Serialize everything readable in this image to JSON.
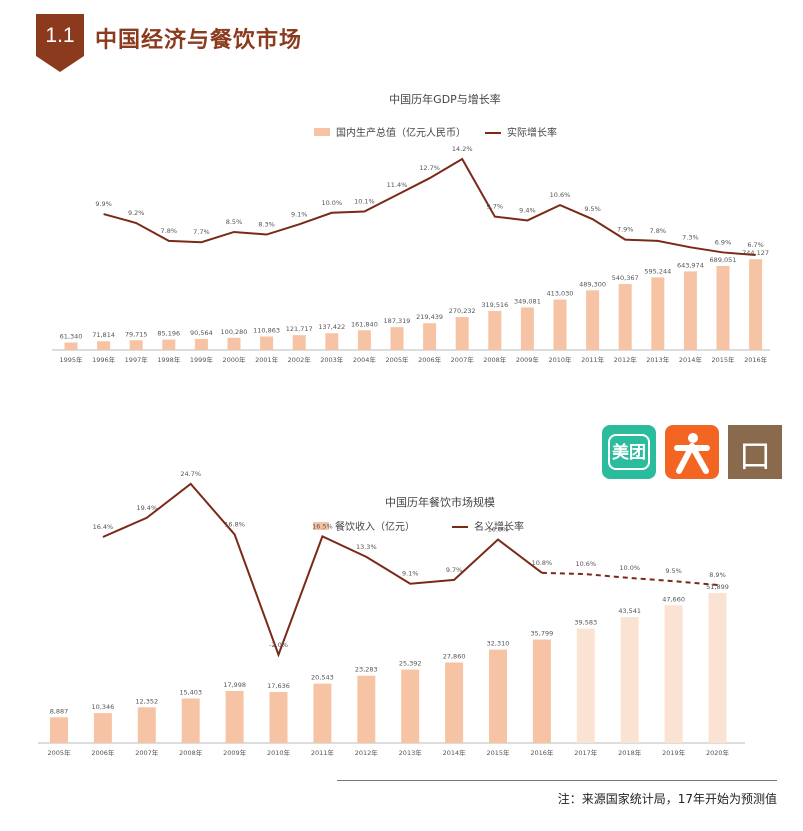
{
  "header": {
    "number": "1.1",
    "title": "中国经济与餐饮市场"
  },
  "logos": {
    "meituan": "美团",
    "koubei": "口碑"
  },
  "note": "注：来源国家统计局，17年开始为预测值",
  "colors": {
    "brand": "#8b3a1e",
    "bar": "#f6c4a4",
    "bar_forecast": "#fbe3d4",
    "line": "#7a2a17",
    "meituan": "#2bbb9d",
    "dianping": "#f26522",
    "koubei": "#8a6a4c"
  },
  "chart_data": [
    {
      "type": "bar",
      "title": "中国历年GDP与增长率",
      "categories": [
        "1995年",
        "1996年",
        "1997年",
        "1998年",
        "1999年",
        "2000年",
        "2001年",
        "2002年",
        "2003年",
        "2004年",
        "2005年",
        "2006年",
        "2007年",
        "2008年",
        "2009年",
        "2010年",
        "2011年",
        "2012年",
        "2013年",
        "2014年",
        "2015年",
        "2016年"
      ],
      "series": [
        {
          "name": "国内生产总值（亿元人民币）",
          "type": "bar",
          "values": [
            61340,
            71814,
            79715,
            85196,
            90564,
            100280,
            110863,
            121717,
            137422,
            161840,
            187319,
            219439,
            270232,
            319516,
            349081,
            413030,
            489300,
            540367,
            595244,
            643974,
            689051,
            744127
          ],
          "labels": [
            "61,340",
            "71,814",
            "79,715",
            "85,196",
            "90,564",
            "100,280",
            "110,863",
            "121,717",
            "137,422",
            "161,840",
            "187,319",
            "219,439",
            "270,232",
            "319,516",
            "349,081",
            "413,030",
            "489,300",
            "540,367",
            "595,244",
            "643,974",
            "689,051",
            "744,127"
          ]
        },
        {
          "name": "实际增长率",
          "type": "line",
          "values": [
            null,
            9.9,
            9.2,
            7.8,
            7.7,
            8.5,
            8.3,
            9.1,
            10.0,
            10.1,
            11.4,
            12.7,
            14.2,
            9.7,
            9.4,
            10.6,
            9.5,
            7.9,
            7.8,
            7.3,
            6.9,
            6.7
          ],
          "labels": [
            "",
            "9.9%",
            "9.2%",
            "7.8%",
            "7.7%",
            "8.5%",
            "8.3%",
            "9.1%",
            "10.0%",
            "10.1%",
            "11.4%",
            "12.7%",
            "14.2%",
            "9.7%",
            "9.4%",
            "10.6%",
            "9.5%",
            "7.9%",
            "7.8%",
            "7.3%",
            "6.9%",
            "6.7%"
          ]
        }
      ]
    },
    {
      "type": "bar",
      "title": "中国历年餐饮市场规模",
      "categories": [
        "2005年",
        "2006年",
        "2007年",
        "2008年",
        "2009年",
        "2010年",
        "2011年",
        "2012年",
        "2013年",
        "2014年",
        "2015年",
        "2016年",
        "2017年",
        "2018年",
        "2019年",
        "2020年"
      ],
      "forecast_from_index": 12,
      "series": [
        {
          "name": "餐饮收入（亿元）",
          "type": "bar",
          "values": [
            8887,
            10346,
            12352,
            15403,
            17998,
            17636,
            20543,
            23283,
            25392,
            27860,
            32310,
            35799,
            39583,
            43541,
            47660,
            51899
          ],
          "labels": [
            "8,887",
            "10,346",
            "12,352",
            "15,403",
            "17,998",
            "17,636",
            "20,543",
            "23,283",
            "25,392",
            "27,860",
            "32,310",
            "35,799",
            "39,583",
            "43,541",
            "47,660",
            "51,899"
          ]
        },
        {
          "name": "名义增长率",
          "type": "line",
          "values": [
            null,
            16.4,
            19.4,
            24.7,
            16.8,
            -2.0,
            16.5,
            13.3,
            9.1,
            9.7,
            16.0,
            10.8,
            10.6,
            10.0,
            9.5,
            8.9
          ],
          "labels": [
            "",
            "16.4%",
            "19.4%",
            "24.7%",
            "16.8%",
            "-2.0%",
            "16.5%",
            "13.3%",
            "9.1%",
            "9.7%",
            "16.0%",
            "10.8%",
            "10.6%",
            "10.0%",
            "9.5%",
            "8.9%"
          ]
        }
      ]
    }
  ]
}
